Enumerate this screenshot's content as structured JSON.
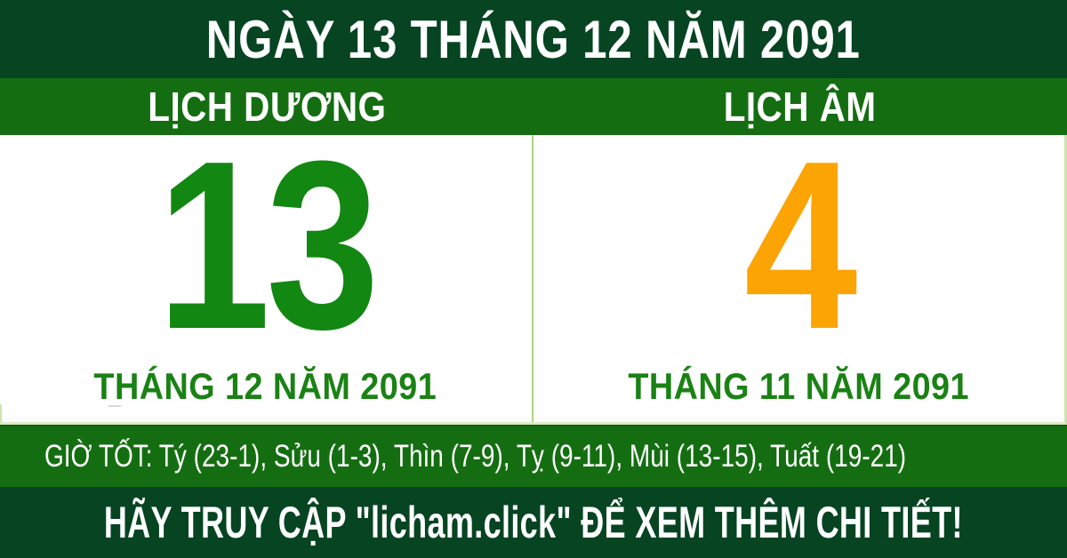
{
  "banner": {
    "title": "NGÀY 13 THÁNG 12 NĂM 2091"
  },
  "solar": {
    "header": "LỊCH DƯƠNG",
    "day": "13",
    "month_year": "THÁNG 12 NĂM 2091"
  },
  "lunar": {
    "header": "LỊCH ÂM",
    "day": "4",
    "month_year": "THÁNG 11 NĂM 2091"
  },
  "good_hours": {
    "text": "GIỜ TỐT: Tý (23-1), Sửu (1-3), Thìn (7-9), Tỵ (9-11), Mùi (13-15), Tuất (19-21)",
    "entries": [
      {
        "name": "Tý",
        "range": "23-1"
      },
      {
        "name": "Sửu",
        "range": "1-3"
      },
      {
        "name": "Thìn",
        "range": "7-9"
      },
      {
        "name": "Tỵ",
        "range": "9-11"
      },
      {
        "name": "Mùi",
        "range": "13-15"
      },
      {
        "name": "Tuất",
        "range": "19-21"
      }
    ]
  },
  "footer": {
    "text": "HÃY TRUY CẬP \"licham.click\" ĐỂ XEM THÊM CHI TIẾT!"
  },
  "colors": {
    "dark_green": "#064422",
    "bright_green": "#146e11",
    "day_green": "#128712",
    "month_green": "#1a8214",
    "day_orange": "#fca404",
    "divider_green": "#aed480"
  }
}
